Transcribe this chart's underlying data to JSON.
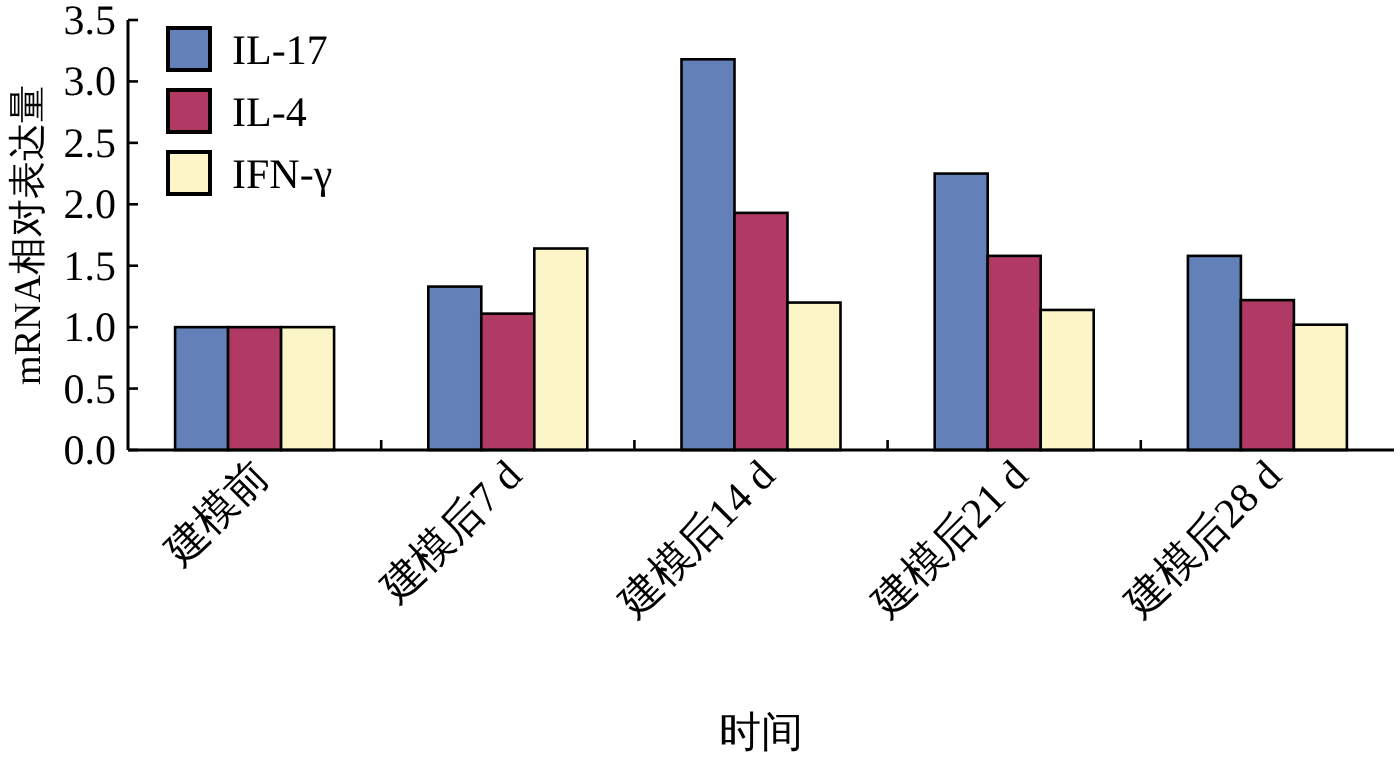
{
  "chart_data": {
    "type": "bar",
    "xlabel": "时间",
    "ylabel": "mRNA相对表达量",
    "categories": [
      "建模前",
      "建模后7 d",
      "建模后14 d",
      "建模后21 d",
      "建模后28 d"
    ],
    "series": [
      {
        "name": "IL-17",
        "color": "#6480b8",
        "values": [
          1.0,
          1.33,
          3.18,
          2.25,
          1.58
        ]
      },
      {
        "name": "IL-4",
        "color": "#b03a64",
        "values": [
          1.0,
          1.11,
          1.93,
          1.58,
          1.22
        ]
      },
      {
        "name": "IFN-γ",
        "color": "#fbf5c8",
        "values": [
          1.0,
          1.64,
          1.2,
          1.14,
          1.02
        ]
      }
    ],
    "ylim": [
      0,
      3.5
    ],
    "yticks": [
      {
        "value": 0,
        "label": "0.0"
      },
      {
        "value": 0.5,
        "label": "0.5"
      },
      {
        "value": 1,
        "label": "1.0"
      },
      {
        "value": 1.5,
        "label": "1.5"
      },
      {
        "value": 2,
        "label": "2.0"
      },
      {
        "value": 2.5,
        "label": "2.5"
      },
      {
        "value": 3,
        "label": "3.0"
      },
      {
        "value": 3.5,
        "label": "3.5"
      }
    ],
    "legend": "top left",
    "grid": false
  }
}
